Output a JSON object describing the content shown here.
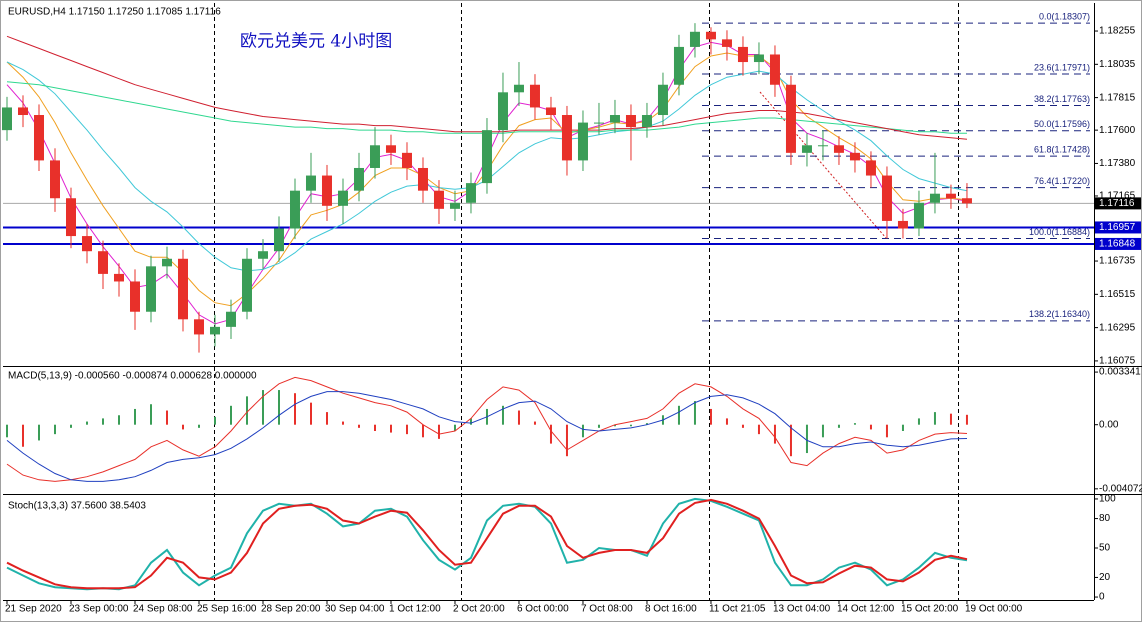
{
  "chart_data": [
    {
      "type": "candlestick",
      "header": "EURUSD,H4  1.17150 1.17250 1.17085 1.17116",
      "title": "欧元兑美元 4小时图",
      "xlim": [
        -0.25,
        67.94
      ],
      "xticks": [
        {
          "value": 0,
          "label": "21 Sep 2020"
        },
        {
          "value": 4,
          "label": "23 Sep 00:00"
        },
        {
          "value": 8,
          "label": "24 Sep 08:00"
        },
        {
          "value": 12,
          "label": "25 Sep 16:00"
        },
        {
          "value": 16,
          "label": "28 Sep 20:00"
        },
        {
          "value": 20,
          "label": "30 Sep 04:00"
        },
        {
          "value": 24,
          "label": "1 Oct 12:00"
        },
        {
          "value": 28,
          "label": "2 Oct 20:00"
        },
        {
          "value": 32,
          "label": "6 Oct 00:00"
        },
        {
          "value": 36,
          "label": "7 Oct 08:00"
        },
        {
          "value": 40,
          "label": "8 Oct 16:00"
        },
        {
          "value": 44,
          "label": "11 Oct 21:05"
        },
        {
          "value": 48,
          "label": "13 Oct 04:00"
        },
        {
          "value": 52,
          "label": "14 Oct 12:00"
        },
        {
          "value": 56,
          "label": "15 Oct 20:00"
        },
        {
          "value": 60,
          "label": "19 Oct 00:00"
        }
      ],
      "ylim": [
        1.16048,
        1.18427
      ],
      "yticks": [
        1.18255,
        1.18035,
        1.17815,
        {
          "value": 1.176,
          "label": "1.17600"
        },
        {
          "value": 1.1738,
          "label": "1.17380"
        },
        1.17165,
        1.16735,
        1.16515,
        1.16295,
        1.16075
      ],
      "up_color": "#3a9d57",
      "down_color": "#e8302a",
      "open": [
        1.176,
        1.1775,
        1.177,
        1.174,
        1.1715,
        1.169,
        1.168,
        1.1665,
        1.166,
        1.164,
        1.167,
        1.1675,
        1.1635,
        1.1625,
        1.163,
        1.164,
        1.1675,
        1.168,
        1.1695,
        1.172,
        1.173,
        1.171,
        1.172,
        1.1735,
        1.175,
        1.1745,
        1.1735,
        1.172,
        1.1708,
        1.1712,
        1.1725,
        1.176,
        1.1785,
        1.179,
        1.1775,
        1.177,
        1.174,
        1.1765,
        1.1765,
        1.177,
        1.1762,
        1.177,
        1.179,
        1.1815,
        1.1825,
        1.182,
        1.1815,
        1.1805,
        1.181,
        1.179,
        1.1745,
        1.175,
        1.175,
        1.1745,
        1.174,
        1.173,
        1.17,
        1.1695,
        1.1712,
        1.1718,
        1.1715
      ],
      "high": [
        1.1782,
        1.1783,
        1.1777,
        1.1748,
        1.1722,
        1.1698,
        1.1687,
        1.1672,
        1.1668,
        1.1677,
        1.1683,
        1.1681,
        1.164,
        1.1638,
        1.1648,
        1.1682,
        1.1688,
        1.1703,
        1.1728,
        1.1745,
        1.1737,
        1.1728,
        1.1745,
        1.1762,
        1.1757,
        1.1752,
        1.1742,
        1.1727,
        1.172,
        1.1732,
        1.1768,
        1.1798,
        1.1805,
        1.1797,
        1.1782,
        1.1776,
        1.1773,
        1.1778,
        1.178,
        1.1777,
        1.1778,
        1.1798,
        1.1823,
        1.18307,
        1.1828,
        1.1826,
        1.1822,
        1.1818,
        1.1816,
        1.1796,
        1.1758,
        1.176,
        1.1756,
        1.1752,
        1.1746,
        1.1736,
        1.1708,
        1.172,
        1.1745,
        1.1724,
        1.1725
      ],
      "low": [
        1.1753,
        1.1762,
        1.1733,
        1.1706,
        1.1682,
        1.1672,
        1.1655,
        1.165,
        1.1628,
        1.1633,
        1.1662,
        1.1627,
        1.1613,
        1.1617,
        1.1622,
        1.1635,
        1.1668,
        1.1673,
        1.1688,
        1.1712,
        1.17,
        1.1698,
        1.1713,
        1.1728,
        1.1737,
        1.1727,
        1.1712,
        1.1698,
        1.17,
        1.1705,
        1.1718,
        1.1752,
        1.1776,
        1.1767,
        1.176,
        1.173,
        1.1733,
        1.1757,
        1.1758,
        1.174,
        1.1755,
        1.1763,
        1.1783,
        1.1808,
        1.181,
        1.1806,
        1.1796,
        1.1797,
        1.1782,
        1.1737,
        1.1736,
        1.174,
        1.1737,
        1.1732,
        1.1722,
        1.16884,
        1.16884,
        1.169,
        1.1705,
        1.1708,
        1.17085
      ],
      "close": [
        1.1775,
        1.177,
        1.174,
        1.1715,
        1.169,
        1.168,
        1.1665,
        1.166,
        1.164,
        1.167,
        1.1675,
        1.1635,
        1.1625,
        1.163,
        1.164,
        1.1675,
        1.168,
        1.1695,
        1.172,
        1.173,
        1.171,
        1.172,
        1.1735,
        1.175,
        1.1745,
        1.1735,
        1.172,
        1.1708,
        1.1712,
        1.1725,
        1.176,
        1.1785,
        1.179,
        1.1775,
        1.177,
        1.174,
        1.1765,
        1.1765,
        1.177,
        1.1762,
        1.177,
        1.179,
        1.1815,
        1.1825,
        1.182,
        1.1815,
        1.1805,
        1.181,
        1.179,
        1.1745,
        1.175,
        1.175,
        1.1745,
        1.174,
        1.173,
        1.17,
        1.1695,
        1.1712,
        1.1718,
        1.1715,
        1.17116
      ],
      "ma_lines": [
        {
          "color": "#e020d0",
          "values": [
            1.179,
            1.1778,
            1.176,
            1.1738,
            1.1715,
            1.1698,
            1.1683,
            1.167,
            1.1656,
            1.1658,
            1.1665,
            1.1652,
            1.1638,
            1.1632,
            1.1635,
            1.1652,
            1.1668,
            1.1682,
            1.1702,
            1.1718,
            1.1716,
            1.1718,
            1.1728,
            1.1742,
            1.1744,
            1.174,
            1.1728,
            1.1716,
            1.1713,
            1.172,
            1.1742,
            1.1765,
            1.1778,
            1.1776,
            1.1773,
            1.1755,
            1.176,
            1.1763,
            1.1767,
            1.1764,
            1.1767,
            1.178,
            1.18,
            1.1815,
            1.1818,
            1.1816,
            1.181,
            1.181,
            1.1798,
            1.1768,
            1.1758,
            1.1754,
            1.1749,
            1.1744,
            1.1736,
            1.1716,
            1.1705,
            1.1709,
            1.1714,
            1.1715,
            1.1713
          ]
        },
        {
          "color": "#f0a020",
          "values": [
            1.1805,
            1.1795,
            1.1782,
            1.1765,
            1.1745,
            1.1727,
            1.171,
            1.1695,
            1.168,
            1.1676,
            1.1676,
            1.1666,
            1.1654,
            1.1646,
            1.1644,
            1.1652,
            1.1662,
            1.1674,
            1.169,
            1.1704,
            1.1707,
            1.1711,
            1.1719,
            1.173,
            1.1735,
            1.1735,
            1.173,
            1.1722,
            1.1718,
            1.172,
            1.1733,
            1.175,
            1.1763,
            1.1767,
            1.1768,
            1.1758,
            1.176,
            1.1762,
            1.1765,
            1.1764,
            1.1766,
            1.1774,
            1.1789,
            1.1802,
            1.1809,
            1.1811,
            1.1809,
            1.1809,
            1.1801,
            1.178,
            1.1769,
            1.1762,
            1.1755,
            1.1749,
            1.1741,
            1.1726,
            1.1714,
            1.1713,
            1.1715,
            1.1715,
            1.1714
          ]
        },
        {
          "color": "#40c8d8",
          "values": [
            1.1805,
            1.18,
            1.1793,
            1.1784,
            1.1772,
            1.176,
            1.1747,
            1.1735,
            1.1722,
            1.1713,
            1.1706,
            1.1696,
            1.1685,
            1.1676,
            1.1669,
            1.1667,
            1.1668,
            1.1672,
            1.1679,
            1.1688,
            1.1693,
            1.1698,
            1.1705,
            1.1713,
            1.1719,
            1.1723,
            1.1724,
            1.1722,
            1.1721,
            1.1722,
            1.1727,
            1.1736,
            1.1745,
            1.1751,
            1.1755,
            1.1754,
            1.1755,
            1.1757,
            1.1759,
            1.176,
            1.1762,
            1.1766,
            1.1774,
            1.1783,
            1.179,
            1.1795,
            1.1797,
            1.1799,
            1.1797,
            1.1788,
            1.178,
            1.1773,
            1.1766,
            1.176,
            1.1753,
            1.1743,
            1.1734,
            1.1728,
            1.1725,
            1.1722,
            1.172
          ]
        },
        {
          "color": "#30d890",
          "values": [
            1.1792,
            1.1791,
            1.179,
            1.1788,
            1.1786,
            1.1784,
            1.1782,
            1.178,
            1.1778,
            1.1776,
            1.1774,
            1.1772,
            1.177,
            1.1768,
            1.1766,
            1.1765,
            1.1764,
            1.1763,
            1.1762,
            1.1762,
            1.1761,
            1.1761,
            1.176,
            1.176,
            1.176,
            1.1759,
            1.1759,
            1.1758,
            1.1758,
            1.1758,
            1.1758,
            1.1758,
            1.1759,
            1.1759,
            1.1759,
            1.1759,
            1.1759,
            1.1759,
            1.176,
            1.176,
            1.176,
            1.1761,
            1.1762,
            1.1764,
            1.1765,
            1.1766,
            1.1767,
            1.1768,
            1.1768,
            1.1767,
            1.1766,
            1.1765,
            1.1764,
            1.1763,
            1.1762,
            1.1761,
            1.176,
            1.1759,
            1.1759,
            1.1758,
            1.1758
          ]
        },
        {
          "color": "#d02030",
          "values": [
            1.1822,
            1.1818,
            1.1814,
            1.181,
            1.1806,
            1.1802,
            1.1798,
            1.1794,
            1.179,
            1.1787,
            1.1784,
            1.1781,
            1.1778,
            1.1775,
            1.1773,
            1.1771,
            1.1769,
            1.1768,
            1.1767,
            1.1766,
            1.1765,
            1.1764,
            1.1764,
            1.1763,
            1.1763,
            1.1762,
            1.1761,
            1.176,
            1.1759,
            1.1759,
            1.1759,
            1.1759,
            1.176,
            1.176,
            1.176,
            1.176,
            1.176,
            1.176,
            1.1761,
            1.1761,
            1.1762,
            1.1763,
            1.1765,
            1.1767,
            1.1769,
            1.1771,
            1.1772,
            1.1773,
            1.1773,
            1.1772,
            1.1771,
            1.1769,
            1.1767,
            1.1765,
            1.1763,
            1.1761,
            1.1759,
            1.1757,
            1.1756,
            1.1755,
            1.1754
          ]
        }
      ],
      "fib_color": "#1a237e",
      "fib_levels": [
        {
          "value": 1.18307,
          "label": "0.0(1.18307)"
        },
        {
          "value": 1.17971,
          "label": "23.6(1.17971)"
        },
        {
          "value": 1.17763,
          "label": "38.2(1.17763)"
        },
        {
          "value": 1.17596,
          "label": "50.0(1.17596)"
        },
        {
          "value": 1.17428,
          "label": "61.8(1.17428)"
        },
        {
          "value": 1.1722,
          "label": "76.4(1.17220)"
        },
        {
          "value": 1.16884,
          "label": "100.0(1.16884)"
        },
        {
          "value": 1.1634,
          "label": "138.2(1.16340)"
        }
      ],
      "hline_color": "#0000cc",
      "hlines": [
        1.16957,
        1.16848
      ]
    },
    {
      "type": "macd",
      "header": "MACD(5,13,9) -0.000560 -0.000874 0.000628 0.000000",
      "ylim": [
        -0.0044,
        0.0036
      ],
      "yticks": [
        0.003341,
        {
          "value": 0,
          "label": "0.00"
        },
        -0.004072
      ],
      "up_color": "#3a9d57",
      "down_color": "#e8302a",
      "histogram": [
        -0.0008,
        -0.0014,
        -0.001,
        -0.0006,
        -0.0002,
        0.0002,
        0.0004,
        0.0006,
        0.001,
        0.0013,
        0.0009,
        -0.0003,
        -0.0002,
        0.0005,
        0.0012,
        0.0018,
        0.0022,
        0.0022,
        0.002,
        0.0014,
        0.0008,
        0.0002,
        -0.0002,
        -0.0004,
        -0.0005,
        -0.0006,
        -0.0008,
        -0.0009,
        -0.0004,
        0.0004,
        0.001,
        0.0012,
        0.0009,
        0.0002,
        -0.0012,
        -0.002,
        -0.0008,
        -0.0002,
        -0.0001,
        -0.0001,
        0.0001,
        0.0006,
        0.0012,
        0.0015,
        0.001,
        0.0004,
        -0.0002,
        -0.0006,
        -0.0012,
        -0.002,
        -0.0018,
        -0.0008,
        -0.0002,
        0.0001,
        -0.0003,
        -0.0008,
        -0.0004,
        0.0004,
        0.0008,
        0.0007,
        0.000628
      ],
      "series": [
        {
          "color": "#e8302a",
          "values": [
            -0.0025,
            -0.0032,
            -0.0035,
            -0.0036,
            -0.0035,
            -0.0033,
            -0.003,
            -0.0026,
            -0.0022,
            -0.0014,
            -0.001,
            -0.0016,
            -0.002,
            -0.0014,
            -0.0004,
            0.0008,
            0.0018,
            0.0026,
            0.003,
            0.0028,
            0.0024,
            0.002,
            0.0017,
            0.0014,
            0.0012,
            0.0008,
            0,
            -0.0006,
            -0.0004,
            0.0004,
            0.0016,
            0.0024,
            0.0022,
            0.0014,
            -0.0004,
            -0.0016,
            -0.001,
            -0.0004,
            0,
            0.0002,
            0.0004,
            0.001,
            0.002,
            0.0026,
            0.0024,
            0.0018,
            0.001,
            0.0004,
            -0.0008,
            -0.0024,
            -0.0026,
            -0.0018,
            -0.0012,
            -0.0008,
            -0.001,
            -0.0018,
            -0.0016,
            -0.001,
            -0.0006,
            -0.0005,
            -0.00056
          ]
        },
        {
          "color": "#2040c0",
          "values": [
            -0.001,
            -0.0018,
            -0.0025,
            -0.0031,
            -0.0035,
            -0.0036,
            -0.0036,
            -0.0035,
            -0.0033,
            -0.0029,
            -0.0024,
            -0.0022,
            -0.0021,
            -0.0019,
            -0.0015,
            -0.0009,
            -0.0002,
            0.0006,
            0.0013,
            0.0018,
            0.0021,
            0.0021,
            0.002,
            0.0018,
            0.0016,
            0.0013,
            0.001,
            0.0005,
            0.0002,
            0.0001,
            0.0005,
            0.001,
            0.0014,
            0.0015,
            0.001,
            0.0002,
            -0.0003,
            -0.0004,
            -0.0003,
            -0.0002,
            0,
            0.0003,
            0.0008,
            0.0014,
            0.0018,
            0.0019,
            0.0017,
            0.0013,
            0.0007,
            -0.0002,
            -0.001,
            -0.0014,
            -0.0014,
            -0.0012,
            -0.0011,
            -0.0013,
            -0.0014,
            -0.0013,
            -0.0011,
            -0.0009,
            -0.000874
          ]
        }
      ]
    },
    {
      "type": "stoch",
      "header": "Stoch(13,3,3) 37.5600 38.5403",
      "ylim": [
        -3,
        103
      ],
      "yticks": [
        100,
        80,
        50,
        20,
        0
      ],
      "series": [
        {
          "color": "#20b2aa",
          "values": [
            30,
            22,
            14,
            10,
            9,
            8,
            9,
            8,
            12,
            35,
            48,
            25,
            12,
            22,
            30,
            65,
            88,
            95,
            93,
            95,
            85,
            72,
            75,
            88,
            90,
            82,
            58,
            38,
            28,
            40,
            78,
            93,
            95,
            92,
            75,
            35,
            38,
            50,
            48,
            48,
            42,
            75,
            95,
            100,
            98,
            92,
            85,
            78,
            35,
            12,
            12,
            18,
            30,
            35,
            28,
            12,
            18,
            30,
            45,
            40,
            37.56
          ]
        },
        {
          "color": "#e02020",
          "values": [
            35,
            27,
            20,
            13,
            10,
            9,
            9,
            9,
            10,
            22,
            40,
            35,
            20,
            18,
            25,
            45,
            75,
            90,
            93,
            94,
            90,
            78,
            75,
            82,
            88,
            86,
            68,
            48,
            33,
            35,
            60,
            85,
            93,
            93,
            82,
            52,
            40,
            45,
            48,
            48,
            45,
            60,
            85,
            96,
            99,
            95,
            88,
            80,
            52,
            22,
            14,
            15,
            24,
            32,
            30,
            18,
            16,
            25,
            38,
            42,
            38.5403
          ]
        }
      ]
    }
  ]
}
